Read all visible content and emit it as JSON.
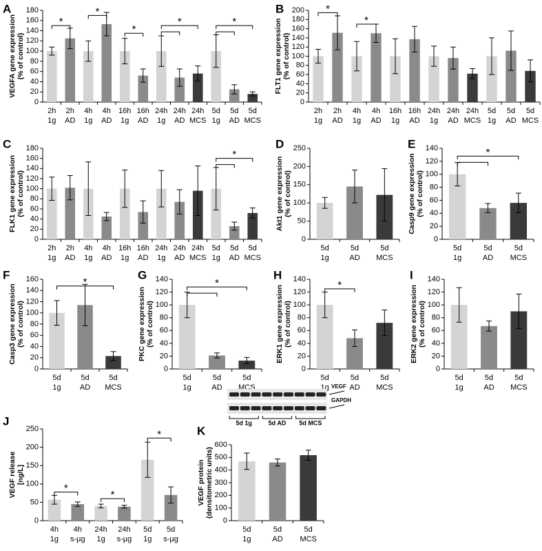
{
  "chart_data": [
    {
      "type": "bar",
      "panel": "A",
      "ylabel": [
        "VEGFA gene expression",
        "(% of control)"
      ],
      "categories": [
        [
          "2h",
          "1g"
        ],
        [
          "2h",
          "AD"
        ],
        [
          "4h",
          "1g"
        ],
        [
          "4h",
          "AD"
        ],
        [
          "16h",
          "1g"
        ],
        [
          "16h",
          "AD"
        ],
        [
          "24h",
          "1g"
        ],
        [
          "24h",
          "AD"
        ],
        [
          "24h",
          "MCS"
        ],
        [
          "5d",
          "1g"
        ],
        [
          "5d",
          "AD"
        ],
        [
          "5d",
          "MCS"
        ]
      ],
      "values": [
        100,
        125,
        100,
        153,
        100,
        52,
        100,
        48,
        56,
        100,
        25,
        16
      ],
      "errors": [
        8,
        20,
        20,
        23,
        25,
        13,
        30,
        17,
        15,
        32,
        9,
        4
      ],
      "colors": [
        "#d4d4d4",
        "#8a8a8a",
        "#d4d4d4",
        "#8a8a8a",
        "#d4d4d4",
        "#8a8a8a",
        "#d4d4d4",
        "#8a8a8a",
        "#3a3a3a",
        "#d4d4d4",
        "#8a8a8a",
        "#3a3a3a"
      ],
      "ylim": [
        0,
        180
      ],
      "yticks": [
        0,
        20,
        40,
        60,
        80,
        100,
        120,
        140,
        160,
        180
      ],
      "annotations": [
        "*",
        "*",
        "*",
        "*",
        "*"
      ]
    },
    {
      "type": "bar",
      "panel": "B",
      "ylabel": [
        "FLT1 gene expression",
        "(% of control)"
      ],
      "categories": [
        [
          "2h",
          "1g"
        ],
        [
          "2h",
          "AD"
        ],
        [
          "4h",
          "1g"
        ],
        [
          "4h",
          "AD"
        ],
        [
          "16h",
          "1g"
        ],
        [
          "16h",
          "AD"
        ],
        [
          "24h",
          "1g"
        ],
        [
          "24h",
          "AD"
        ],
        [
          "24h",
          "MCS"
        ],
        [
          "5d",
          "1g"
        ],
        [
          "5d",
          "AD"
        ],
        [
          "5d",
          "MCS"
        ]
      ],
      "values": [
        100,
        151,
        100,
        150,
        100,
        137,
        100,
        96,
        62,
        100,
        112,
        68
      ],
      "errors": [
        15,
        37,
        32,
        20,
        38,
        28,
        22,
        24,
        11,
        40,
        43,
        24
      ],
      "colors": [
        "#d4d4d4",
        "#8a8a8a",
        "#d4d4d4",
        "#8a8a8a",
        "#d4d4d4",
        "#8a8a8a",
        "#d4d4d4",
        "#8a8a8a",
        "#3a3a3a",
        "#d4d4d4",
        "#8a8a8a",
        "#3a3a3a"
      ],
      "ylim": [
        0,
        200
      ],
      "yticks": [
        0,
        20,
        40,
        60,
        80,
        100,
        120,
        140,
        160,
        180,
        200
      ],
      "annotations": [
        "*",
        "*"
      ]
    },
    {
      "type": "bar",
      "panel": "C",
      "ylabel": [
        "FLK1 gene expression",
        "(% of control)"
      ],
      "categories": [
        [
          "2h",
          "1g"
        ],
        [
          "2h",
          "AD"
        ],
        [
          "4h",
          "1g"
        ],
        [
          "4h",
          "AD"
        ],
        [
          "16h",
          "1g"
        ],
        [
          "16h",
          "AD"
        ],
        [
          "24h",
          "1g"
        ],
        [
          "24h",
          "AD"
        ],
        [
          "24h",
          "MCS"
        ],
        [
          "5d",
          "1g"
        ],
        [
          "5d",
          "AD"
        ],
        [
          "5d",
          "MCS"
        ]
      ],
      "values": [
        100,
        102,
        100,
        45,
        100,
        54,
        100,
        74,
        96,
        100,
        26,
        52
      ],
      "errors": [
        23,
        24,
        53,
        8,
        37,
        22,
        36,
        24,
        49,
        42,
        8,
        10
      ],
      "colors": [
        "#d4d4d4",
        "#8a8a8a",
        "#d4d4d4",
        "#8a8a8a",
        "#d4d4d4",
        "#8a8a8a",
        "#d4d4d4",
        "#8a8a8a",
        "#3a3a3a",
        "#d4d4d4",
        "#8a8a8a",
        "#3a3a3a"
      ],
      "ylim": [
        0,
        180
      ],
      "yticks": [
        0,
        20,
        40,
        60,
        80,
        100,
        120,
        140,
        160,
        180
      ],
      "annotations": [
        "*"
      ]
    },
    {
      "type": "bar",
      "panel": "D",
      "ylabel": [
        "Akt1 gene expression",
        "(% of control)"
      ],
      "categories": [
        [
          "5d",
          "1g"
        ],
        [
          "5d",
          "AD"
        ],
        [
          "5d",
          "MCS"
        ]
      ],
      "values": [
        100,
        145,
        122
      ],
      "errors": [
        15,
        45,
        72
      ],
      "colors": [
        "#d4d4d4",
        "#8a8a8a",
        "#3a3a3a"
      ],
      "ylim": [
        0,
        250
      ],
      "yticks": [
        0,
        50,
        100,
        150,
        200,
        250
      ],
      "annotations": []
    },
    {
      "type": "bar",
      "panel": "E",
      "ylabel": [
        "Casp9 gene expression",
        "(% of control)"
      ],
      "categories": [
        [
          "5d",
          "1g"
        ],
        [
          "5d",
          "AD"
        ],
        [
          "5d",
          "MCS"
        ]
      ],
      "values": [
        100,
        48,
        56
      ],
      "errors": [
        18,
        7,
        15
      ],
      "colors": [
        "#d4d4d4",
        "#8a8a8a",
        "#3a3a3a"
      ],
      "ylim": [
        0,
        140
      ],
      "yticks": [
        0,
        20,
        40,
        60,
        80,
        100,
        120,
        140
      ],
      "annotations": [
        "*"
      ]
    },
    {
      "type": "bar",
      "panel": "F",
      "ylabel": [
        "Casp3 gene expression",
        "(% of control)"
      ],
      "categories": [
        [
          "5d",
          "1g"
        ],
        [
          "5d",
          "AD"
        ],
        [
          "5d",
          "MCS"
        ]
      ],
      "values": [
        100,
        114,
        23
      ],
      "errors": [
        22,
        37,
        8
      ],
      "colors": [
        "#d4d4d4",
        "#8a8a8a",
        "#3a3a3a"
      ],
      "ylim": [
        0,
        160
      ],
      "yticks": [
        0,
        20,
        40,
        60,
        80,
        100,
        120,
        140,
        160
      ],
      "annotations": [
        "*"
      ]
    },
    {
      "type": "bar",
      "panel": "G",
      "ylabel": [
        "PKC gene expression",
        "(% of control)"
      ],
      "categories": [
        [
          "5d",
          "1g"
        ],
        [
          "5d",
          "AD"
        ],
        [
          "5d",
          "MCS"
        ]
      ],
      "values": [
        100,
        21,
        13
      ],
      "errors": [
        20,
        4,
        5
      ],
      "colors": [
        "#d4d4d4",
        "#8a8a8a",
        "#3a3a3a"
      ],
      "ylim": [
        0,
        140
      ],
      "yticks": [
        0,
        20,
        40,
        60,
        80,
        100,
        120,
        140
      ],
      "annotations": [
        "*"
      ]
    },
    {
      "type": "bar",
      "panel": "H",
      "ylabel": [
        "ERK1 gene expression",
        "(% of control)"
      ],
      "categories": [
        [
          "5d",
          "1g"
        ],
        [
          "5d",
          "AD"
        ],
        [
          "5d",
          "MCS"
        ]
      ],
      "values": [
        100,
        48,
        72
      ],
      "errors": [
        20,
        13,
        20
      ],
      "colors": [
        "#d4d4d4",
        "#8a8a8a",
        "#3a3a3a"
      ],
      "ylim": [
        0,
        140
      ],
      "yticks": [
        0,
        20,
        40,
        60,
        80,
        100,
        120,
        140
      ],
      "annotations": [
        "*"
      ]
    },
    {
      "type": "bar",
      "panel": "I",
      "ylabel": [
        "ERK2 gene expression",
        "(% of control)"
      ],
      "categories": [
        [
          "5d",
          "1g"
        ],
        [
          "5d",
          "AD"
        ],
        [
          "5d",
          "MCS"
        ]
      ],
      "values": [
        100,
        67,
        90
      ],
      "errors": [
        27,
        8,
        27
      ],
      "colors": [
        "#d4d4d4",
        "#8a8a8a",
        "#3a3a3a"
      ],
      "ylim": [
        0,
        140
      ],
      "yticks": [
        0,
        20,
        40,
        60,
        80,
        100,
        120,
        140
      ],
      "annotations": []
    },
    {
      "type": "bar",
      "panel": "J",
      "ylabel": [
        "VEGF release",
        "[ng/L]"
      ],
      "categories": [
        [
          "4h",
          "1g"
        ],
        [
          "4h",
          "s-µg"
        ],
        [
          "24h",
          "1g"
        ],
        [
          "24h",
          "s-µg"
        ],
        [
          "5d",
          "1g"
        ],
        [
          "5d",
          "s-µg"
        ]
      ],
      "values": [
        57,
        45,
        40,
        38,
        166,
        70
      ],
      "errors": [
        12,
        6,
        5,
        4,
        48,
        22
      ],
      "colors": [
        "#d4d4d4",
        "#8a8a8a",
        "#d4d4d4",
        "#8a8a8a",
        "#d4d4d4",
        "#8a8a8a"
      ],
      "ylim": [
        0,
        250
      ],
      "yticks": [
        0,
        50,
        100,
        150,
        200,
        250
      ],
      "annotations": [
        "*",
        "*",
        "*"
      ]
    },
    {
      "type": "bar",
      "panel": "K",
      "ylabel": [
        "VEGF protein",
        "(densitometric units)"
      ],
      "categories": [
        [
          "5d",
          "1g"
        ],
        [
          "5d",
          "AD"
        ],
        [
          "5d",
          "MCS"
        ]
      ],
      "values": [
        470,
        460,
        518
      ],
      "errors": [
        65,
        28,
        40
      ],
      "colors": [
        "#d4d4d4",
        "#8a8a8a",
        "#3a3a3a"
      ],
      "ylim": [
        0,
        600
      ],
      "yticks": [
        0,
        100,
        200,
        300,
        400,
        500,
        600
      ],
      "annotations": [],
      "blot": {
        "rows": [
          "VEGF",
          "GAPDH"
        ],
        "lanes": [
          "5d 1g",
          "5d AD",
          "5d MCS"
        ]
      }
    }
  ]
}
